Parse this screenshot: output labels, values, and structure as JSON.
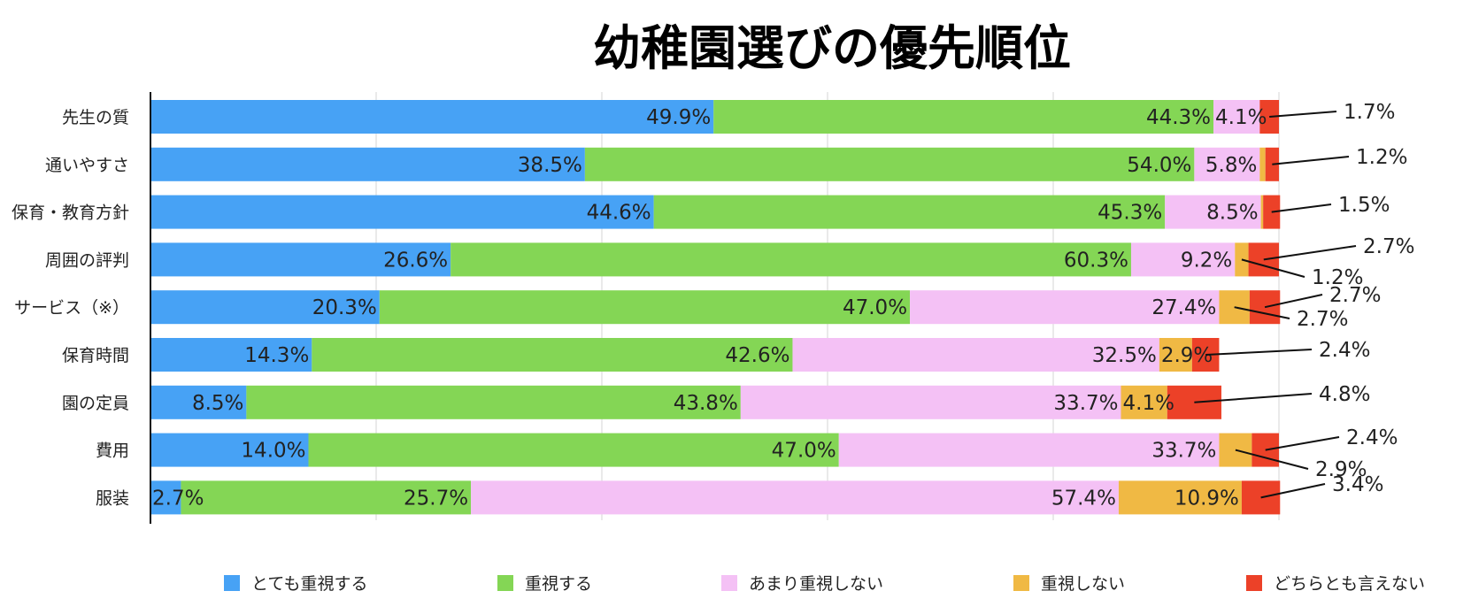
{
  "chart_data": {
    "type": "bar",
    "orientation": "horizontal",
    "stacked": true,
    "title": "幼稚園選びの優先順位",
    "xlabel": "",
    "ylabel": "",
    "xlim": [
      0,
      100
    ],
    "grid": true,
    "legend_position": "bottom",
    "categories": [
      "先生の質",
      "通いやすさ",
      "保育・教育方針",
      "周囲の評判",
      "サービス（※）",
      "保育時間",
      "園の定員",
      "費用",
      "服装"
    ],
    "series": [
      {
        "name": "とても重視する",
        "color": "#47a2f5",
        "values": [
          49.9,
          38.5,
          44.6,
          26.6,
          20.3,
          14.3,
          8.5,
          14.0,
          2.7
        ],
        "labels": [
          "49.9%",
          "38.5%",
          "44.6%",
          "26.6%",
          "20.3%",
          "14.3%",
          "8.5%",
          "14.0%",
          "2.7%"
        ]
      },
      {
        "name": "重視する",
        "color": "#84d655",
        "values": [
          44.3,
          54.0,
          45.3,
          60.3,
          47.0,
          42.6,
          43.8,
          47.0,
          25.7
        ],
        "labels": [
          "44.3%",
          "54.0%",
          "45.3%",
          "60.3%",
          "47.0%",
          "42.6%",
          "43.8%",
          "47.0%",
          "25.7%"
        ]
      },
      {
        "name": "あまり重視しない",
        "color": "#f4c1f5",
        "values": [
          4.1,
          5.8,
          8.5,
          9.2,
          27.4,
          32.5,
          33.7,
          33.7,
          57.4
        ],
        "labels": [
          "4.1%",
          "5.8%",
          "8.5%",
          "9.2%",
          "27.4%",
          "32.5%",
          "33.7%",
          "33.7%",
          "57.4%"
        ]
      },
      {
        "name": "重視しない",
        "color": "#f0b944",
        "values": [
          0.0,
          0.5,
          0.2,
          1.2,
          2.7,
          2.9,
          4.1,
          2.9,
          10.9
        ],
        "labels": [
          "",
          "",
          "",
          "1.2%",
          "2.7%",
          "2.9%",
          "4.1%",
          "2.9%",
          "10.9%"
        ]
      },
      {
        "name": "どちらとも言えない",
        "color": "#ec4128",
        "values": [
          1.7,
          1.2,
          1.5,
          2.7,
          2.7,
          2.4,
          4.8,
          2.4,
          3.4
        ],
        "labels": [
          "1.7%",
          "1.2%",
          "1.5%",
          "2.7%",
          "2.7%",
          "2.4%",
          "4.8%",
          "2.4%",
          "3.4%"
        ]
      }
    ]
  }
}
